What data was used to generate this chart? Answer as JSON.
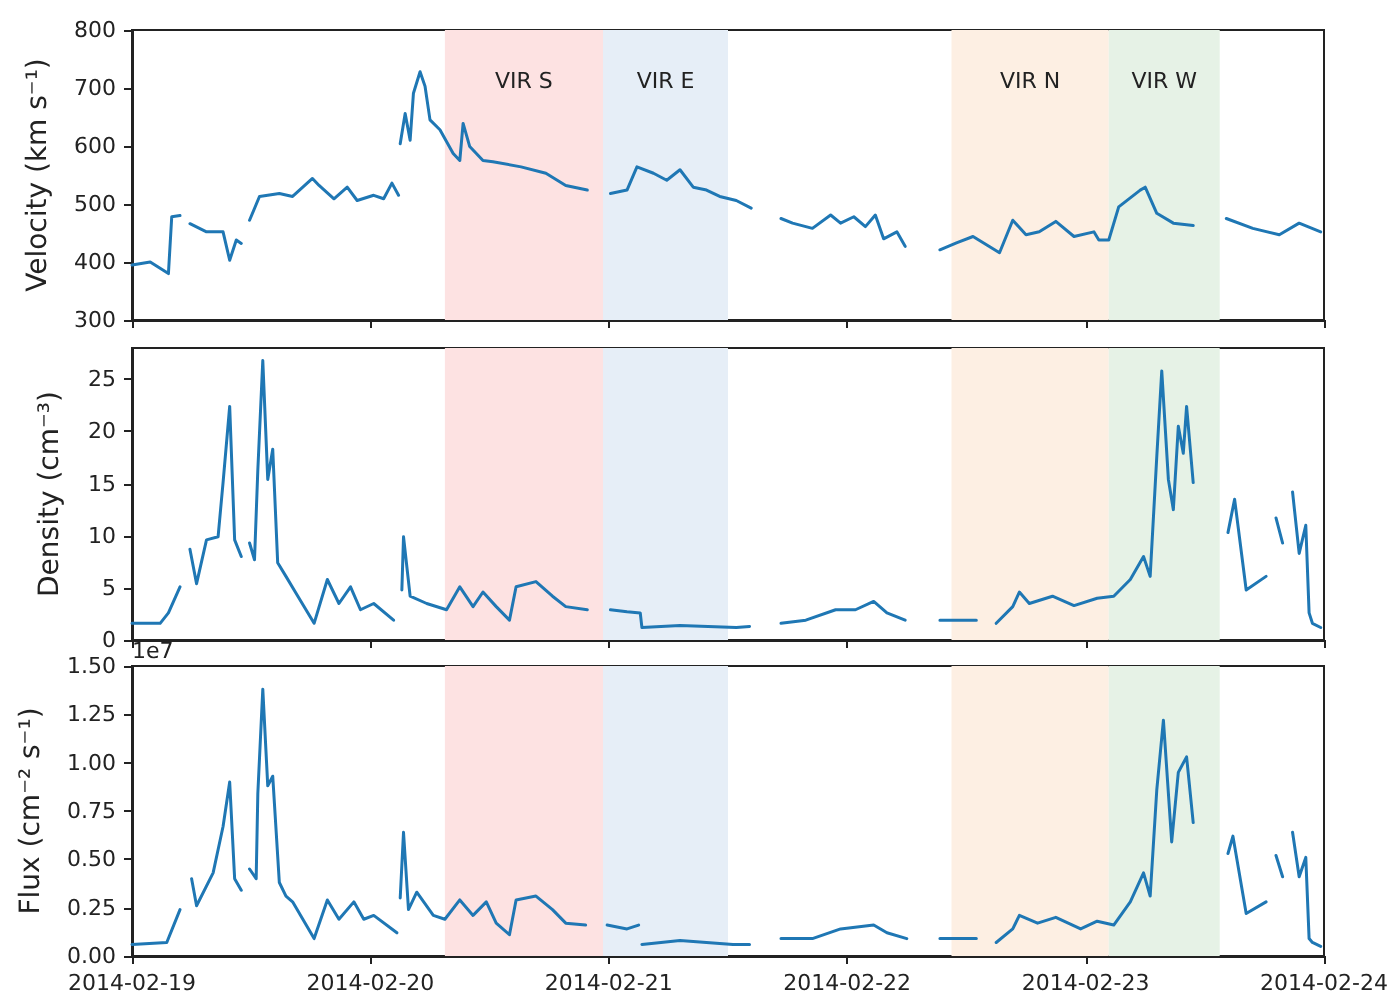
{
  "chart_data": [
    {
      "type": "line",
      "ylabel": "Velocity (km s⁻¹)",
      "xlim": [
        "2014-02-19",
        "2014-02-24"
      ],
      "xticks": [
        "2014-02-19",
        "2014-02-20",
        "2014-02-21",
        "2014-02-22",
        "2014-02-23",
        "2014-02-24"
      ],
      "ylim": [
        300,
        800
      ],
      "yticks": [
        300,
        400,
        500,
        600,
        700,
        800
      ],
      "tick_labels": "y",
      "bands": [
        {
          "axis": "x",
          "from": "2014-02-20T07:30",
          "to": "2014-02-20T23:25",
          "label": "VIR S",
          "color": "#fde2e2"
        },
        {
          "axis": "x",
          "from": "2014-02-20T23:25",
          "to": "2014-02-21T12:00",
          "label": "VIR E",
          "color": "#e6eef7"
        },
        {
          "axis": "x",
          "from": "2014-02-22T10:30",
          "to": "2014-02-23T02:20",
          "label": "VIR N",
          "color": "#fdefe3"
        },
        {
          "axis": "x",
          "from": "2014-02-23T02:20",
          "to": "2014-02-23T13:30",
          "label": "VIR W",
          "color": "#e6f2e6"
        }
      ],
      "x": [
        "2014-02-19T00:00",
        "2014-02-19T01:50",
        "2014-02-19T03:40",
        "2014-02-19T04:00",
        "2014-02-19T04:50",
        "2014-02-19T05:20",
        "2014-02-19T05:50",
        "2014-02-19T07:30",
        "2014-02-19T09:10",
        "2014-02-19T09:50",
        "2014-02-19T10:30",
        "2014-02-19T11:00",
        "2014-02-19T11:20",
        "2014-02-19T11:50",
        "2014-02-19T12:50",
        "2014-02-19T14:50",
        "2014-02-19T16:10",
        "2014-02-19T18:10",
        "2014-02-19T18:50",
        "2014-02-19T20:20",
        "2014-02-19T21:40",
        "2014-02-19T22:40",
        "2014-02-20T00:20",
        "2014-02-20T01:20",
        "2014-02-20T02:10",
        "2014-02-20T02:50",
        "2014-02-20T02:55",
        "2014-02-20T03:00",
        "2014-02-20T03:30",
        "2014-02-20T04:00",
        "2014-02-20T04:20",
        "2014-02-20T05:00",
        "2014-02-20T05:30",
        "2014-02-20T06:00",
        "2014-02-20T07:00",
        "2014-02-20T08:20",
        "2014-02-20T09:00",
        "2014-02-20T09:20",
        "2014-02-20T10:00",
        "2014-02-20T11:20",
        "2014-02-20T12:20",
        "2014-02-20T15:10",
        "2014-02-20T17:40",
        "2014-02-20T19:40",
        "2014-02-20T21:50",
        "2014-02-20T22:40",
        "2014-02-21T00:10",
        "2014-02-21T01:50",
        "2014-02-21T02:50",
        "2014-02-21T04:30",
        "2014-02-21T05:50",
        "2014-02-21T07:10",
        "2014-02-21T08:30",
        "2014-02-21T09:50",
        "2014-02-21T11:10",
        "2014-02-21T12:50",
        "2014-02-21T14:20",
        "2014-02-21T16:00",
        "2014-02-21T17:20",
        "2014-02-21T18:30",
        "2014-02-21T20:30",
        "2014-02-21T22:20",
        "2014-02-21T23:20",
        "2014-02-22T00:40",
        "2014-02-22T01:50",
        "2014-02-22T02:50",
        "2014-02-22T03:40",
        "2014-02-22T05:00",
        "2014-02-22T05:50",
        "2014-02-22T07:00",
        "2014-02-22T09:20",
        "2014-02-22T11:00",
        "2014-02-22T12:40",
        "2014-02-22T15:20",
        "2014-02-22T16:40",
        "2014-02-22T18:00",
        "2014-02-22T19:20",
        "2014-02-22T21:00",
        "2014-02-22T22:50",
        "2014-02-23T00:50",
        "2014-02-23T01:20",
        "2014-02-23T02:20",
        "2014-02-23T03:20",
        "2014-02-23T05:30",
        "2014-02-23T06:00",
        "2014-02-23T07:10",
        "2014-02-23T08:50",
        "2014-02-23T10:50",
        "2014-02-23T13:00",
        "2014-02-23T14:10",
        "2014-02-23T16:50",
        "2014-02-23T19:30",
        "2014-02-23T21:30",
        "2014-02-23T23:40"
      ],
      "series": [
        {
          "color": "#1f77b4",
          "values": [
            395,
            400,
            380,
            478,
            480,
            null,
            466,
            452,
            452,
            403,
            438,
            432,
            null,
            472,
            513,
            518,
            513,
            544,
            532,
            509,
            529,
            506,
            515,
            509,
            536,
            515,
            null,
            604,
            656,
            610,
            691,
            728,
            703,
            645,
            628,
            587,
            575,
            639,
            599,
            575,
            573,
            564,
            553,
            532,
            524,
            null,
            518,
            524,
            564,
            553,
            541,
            559,
            529,
            524,
            513,
            506,
            493,
            null,
            475,
            467,
            458,
            481,
            467,
            478,
            461,
            481,
            440,
            452,
            427,
            null,
            421,
            433,
            444,
            416,
            472,
            447,
            452,
            470,
            444,
            452,
            438,
            438,
            495,
            524,
            529,
            484,
            467,
            463,
            null,
            475,
            458,
            447,
            467,
            452
          ]
        }
      ]
    },
    {
      "type": "line",
      "ylabel": "Density (cm⁻³)",
      "xlim": [
        "2014-02-19",
        "2014-02-24"
      ],
      "xticks": [
        "2014-02-19",
        "2014-02-20",
        "2014-02-21",
        "2014-02-22",
        "2014-02-23",
        "2014-02-24"
      ],
      "ylim": [
        0,
        28
      ],
      "yticks": [
        0,
        5,
        10,
        15,
        20,
        25
      ],
      "tick_labels": "y",
      "bands": [
        {
          "axis": "x",
          "from": "2014-02-20T07:30",
          "to": "2014-02-20T23:25",
          "color": "#fde2e2"
        },
        {
          "axis": "x",
          "from": "2014-02-20T23:25",
          "to": "2014-02-21T12:00",
          "color": "#e6eef7"
        },
        {
          "axis": "x",
          "from": "2014-02-22T10:30",
          "to": "2014-02-23T02:20",
          "color": "#fdefe3"
        },
        {
          "axis": "x",
          "from": "2014-02-23T02:20",
          "to": "2014-02-23T13:30",
          "color": "#e6f2e6"
        }
      ],
      "x": [
        "2014-02-19T00:00",
        "2014-02-19T02:50",
        "2014-02-19T03:40",
        "2014-02-19T04:50",
        "2014-02-19T05:10",
        "2014-02-19T05:50",
        "2014-02-19T06:30",
        "2014-02-19T07:30",
        "2014-02-19T08:40",
        "2014-02-19T09:10",
        "2014-02-19T09:50",
        "2014-02-19T10:20",
        "2014-02-19T11:00",
        "2014-02-19T11:20",
        "2014-02-19T11:50",
        "2014-02-19T12:20",
        "2014-02-19T12:40",
        "2014-02-19T13:10",
        "2014-02-19T13:40",
        "2014-02-19T14:10",
        "2014-02-19T14:40",
        "2014-02-19T15:30",
        "2014-02-19T16:30",
        "2014-02-19T18:20",
        "2014-02-19T19:40",
        "2014-02-19T20:50",
        "2014-02-19T22:00",
        "2014-02-19T23:00",
        "2014-02-20T00:20",
        "2014-02-20T02:20",
        "2014-02-20T02:50",
        "2014-02-20T03:10",
        "2014-02-20T03:20",
        "2014-02-20T04:00",
        "2014-02-20T05:40",
        "2014-02-20T07:40",
        "2014-02-20T09:00",
        "2014-02-20T10:20",
        "2014-02-20T11:20",
        "2014-02-20T12:40",
        "2014-02-20T14:00",
        "2014-02-20T14:40",
        "2014-02-20T16:40",
        "2014-02-20T18:20",
        "2014-02-20T19:40",
        "2014-02-20T21:50",
        "2014-02-20T22:40",
        "2014-02-21T00:10",
        "2014-02-21T01:50",
        "2014-02-21T03:10",
        "2014-02-21T03:20",
        "2014-02-21T07:10",
        "2014-02-21T12:50",
        "2014-02-21T14:10",
        "2014-02-21T16:00",
        "2014-02-21T17:20",
        "2014-02-21T19:50",
        "2014-02-21T22:50",
        "2014-02-22T00:50",
        "2014-02-22T02:40",
        "2014-02-22T04:00",
        "2014-02-22T05:50",
        "2014-02-22T07:00",
        "2014-02-22T09:20",
        "2014-02-22T13:00",
        "2014-02-22T14:00",
        "2014-02-22T15:00",
        "2014-02-22T16:40",
        "2014-02-22T17:20",
        "2014-02-22T18:20",
        "2014-02-22T20:40",
        "2014-02-22T22:50",
        "2014-02-23T01:10",
        "2014-02-23T02:50",
        "2014-02-23T04:30",
        "2014-02-23T05:50",
        "2014-02-23T06:30",
        "2014-02-23T07:10",
        "2014-02-23T07:40",
        "2014-02-23T08:20",
        "2014-02-23T08:50",
        "2014-02-23T09:20",
        "2014-02-23T09:50",
        "2014-02-23T10:10",
        "2014-02-23T10:50",
        "2014-02-23T12:30",
        "2014-02-23T14:20",
        "2014-02-23T15:00",
        "2014-02-23T16:10",
        "2014-02-23T18:10",
        "2014-02-23T18:50",
        "2014-02-23T19:10",
        "2014-02-23T19:50",
        "2014-02-23T20:30",
        "2014-02-23T20:50",
        "2014-02-23T21:30",
        "2014-02-23T22:10",
        "2014-02-23T22:30",
        "2014-02-23T22:50",
        "2014-02-23T23:40"
      ],
      "series": [
        {
          "color": "#1f77b4",
          "values": [
            1.6,
            1.6,
            2.6,
            5.1,
            null,
            8.7,
            5.4,
            9.6,
            9.9,
            15.1,
            22.4,
            9.6,
            8.0,
            null,
            9.3,
            7.7,
            16.3,
            26.8,
            15.4,
            18.3,
            7.4,
            6.1,
            4.5,
            1.6,
            5.8,
            3.5,
            5.1,
            2.9,
            3.5,
            1.9,
            null,
            4.8,
            9.9,
            4.2,
            3.5,
            2.9,
            5.1,
            3.2,
            4.6,
            3.2,
            1.9,
            5.1,
            5.6,
            4.2,
            3.2,
            2.9,
            null,
            2.9,
            2.7,
            2.6,
            1.2,
            1.4,
            1.2,
            1.3,
            null,
            1.6,
            1.9,
            2.9,
            2.9,
            3.7,
            2.6,
            1.9,
            null,
            1.9,
            1.9,
            null,
            1.6,
            3.2,
            4.6,
            3.5,
            4.2,
            3.3,
            4.0,
            4.2,
            5.8,
            8.0,
            6.1,
            17.6,
            25.8,
            15.4,
            12.5,
            20.5,
            17.9,
            22.4,
            15.1,
            null,
            10.3,
            13.5,
            4.8,
            6.1,
            null,
            11.7,
            9.3,
            null,
            14.2,
            8.3,
            11.0,
            2.6,
            1.6,
            1.2
          ]
        }
      ]
    },
    {
      "type": "line",
      "ylabel": "Flux (cm⁻² s⁻¹)",
      "annotations": [
        "1e7"
      ],
      "xlim": [
        "2014-02-19",
        "2014-02-24"
      ],
      "xticks": [
        "2014-02-19",
        "2014-02-20",
        "2014-02-21",
        "2014-02-22",
        "2014-02-23",
        "2014-02-24"
      ],
      "ylim": [
        0,
        1.5
      ],
      "yticks": [
        {
          "value": 0,
          "label": "0.00"
        },
        {
          "value": 0.25,
          "label": "0.25"
        },
        {
          "value": 0.5,
          "label": "0.50"
        },
        {
          "value": 0.75,
          "label": "0.75"
        },
        {
          "value": 1,
          "label": "1.00"
        },
        {
          "value": 1.25,
          "label": "1.25"
        },
        {
          "value": 1.5,
          "label": "1.50"
        }
      ],
      "bands": [
        {
          "axis": "x",
          "from": "2014-02-20T07:30",
          "to": "2014-02-20T23:25",
          "color": "#fde2e2"
        },
        {
          "axis": "x",
          "from": "2014-02-20T23:25",
          "to": "2014-02-21T12:00",
          "color": "#e6eef7"
        },
        {
          "axis": "x",
          "from": "2014-02-22T10:30",
          "to": "2014-02-23T02:20",
          "color": "#fdefe3"
        },
        {
          "axis": "x",
          "from": "2014-02-23T02:20",
          "to": "2014-02-23T13:30",
          "color": "#e6f2e6"
        }
      ],
      "x": [
        "2014-02-19T00:00",
        "2014-02-19T03:30",
        "2014-02-19T04:50",
        "2014-02-19T05:10",
        "2014-02-19T06:00",
        "2014-02-19T06:30",
        "2014-02-19T08:10",
        "2014-02-19T09:10",
        "2014-02-19T09:50",
        "2014-02-19T10:20",
        "2014-02-19T11:00",
        "2014-02-19T11:20",
        "2014-02-19T11:50",
        "2014-02-19T12:30",
        "2014-02-19T12:40",
        "2014-02-19T13:10",
        "2014-02-19T13:40",
        "2014-02-19T14:10",
        "2014-02-19T14:50",
        "2014-02-19T15:30",
        "2014-02-19T16:10",
        "2014-02-19T18:20",
        "2014-02-19T19:40",
        "2014-02-19T20:50",
        "2014-02-19T22:20",
        "2014-02-19T23:20",
        "2014-02-20T00:20",
        "2014-02-20T02:40",
        "2014-02-20T02:55",
        "2014-02-20T03:00",
        "2014-02-20T03:20",
        "2014-02-20T03:50",
        "2014-02-20T04:40",
        "2014-02-20T06:20",
        "2014-02-20T07:30",
        "2014-02-20T09:00",
        "2014-02-20T10:20",
        "2014-02-20T11:40",
        "2014-02-20T12:40",
        "2014-02-20T14:00",
        "2014-02-20T14:40",
        "2014-02-20T16:40",
        "2014-02-20T18:20",
        "2014-02-20T19:40",
        "2014-02-20T21:40",
        "2014-02-20T22:40",
        "2014-02-20T23:50",
        "2014-02-21T01:50",
        "2014-02-21T03:00",
        "2014-02-21T03:10",
        "2014-02-21T03:20",
        "2014-02-21T07:10",
        "2014-02-21T12:30",
        "2014-02-21T14:10",
        "2014-02-21T16:00",
        "2014-02-21T17:20",
        "2014-02-21T20:30",
        "2014-02-21T23:20",
        "2014-02-22T02:40",
        "2014-02-22T04:00",
        "2014-02-22T06:00",
        "2014-02-22T07:00",
        "2014-02-22T09:20",
        "2014-02-22T13:00",
        "2014-02-22T14:00",
        "2014-02-22T15:00",
        "2014-02-22T16:40",
        "2014-02-22T17:20",
        "2014-02-22T19:10",
        "2014-02-22T21:00",
        "2014-02-22T23:30",
        "2014-02-23T01:10",
        "2014-02-23T02:50",
        "2014-02-23T04:30",
        "2014-02-23T05:50",
        "2014-02-23T06:30",
        "2014-02-23T07:10",
        "2014-02-23T07:50",
        "2014-02-23T08:40",
        "2014-02-23T09:20",
        "2014-02-23T10:10",
        "2014-02-23T10:50",
        "2014-02-23T12:30",
        "2014-02-23T14:20",
        "2014-02-23T14:50",
        "2014-02-23T16:10",
        "2014-02-23T18:10",
        "2014-02-23T18:50",
        "2014-02-23T19:10",
        "2014-02-23T19:50",
        "2014-02-23T20:30",
        "2014-02-23T20:50",
        "2014-02-23T21:30",
        "2014-02-23T22:10",
        "2014-02-23T22:30",
        "2014-02-23T22:50",
        "2014-02-23T23:40"
      ],
      "series": [
        {
          "color": "#1f77b4",
          "values": [
            0.06,
            0.07,
            0.24,
            null,
            0.4,
            0.26,
            0.43,
            0.67,
            0.9,
            0.4,
            0.34,
            null,
            0.45,
            0.4,
            0.84,
            1.38,
            0.88,
            0.93,
            0.38,
            0.31,
            0.28,
            0.09,
            0.29,
            0.19,
            0.28,
            0.19,
            0.21,
            0.12,
            null,
            0.3,
            0.64,
            0.24,
            0.33,
            0.21,
            0.19,
            0.29,
            0.21,
            0.28,
            0.17,
            0.11,
            0.29,
            0.31,
            0.24,
            0.17,
            0.16,
            null,
            0.16,
            0.14,
            0.16,
            null,
            0.06,
            0.08,
            0.06,
            0.06,
            null,
            0.09,
            0.09,
            0.14,
            0.16,
            0.12,
            0.09,
            null,
            0.09,
            0.09,
            null,
            0.07,
            0.14,
            0.21,
            0.17,
            0.2,
            0.14,
            0.18,
            0.16,
            0.28,
            0.43,
            0.31,
            0.86,
            1.22,
            0.59,
            0.95,
            1.03,
            0.69,
            null,
            0.53,
            0.62,
            0.22,
            0.28,
            null,
            0.52,
            0.41,
            null,
            0.64,
            0.41,
            0.51,
            0.09,
            0.07,
            0.05
          ]
        }
      ]
    }
  ]
}
